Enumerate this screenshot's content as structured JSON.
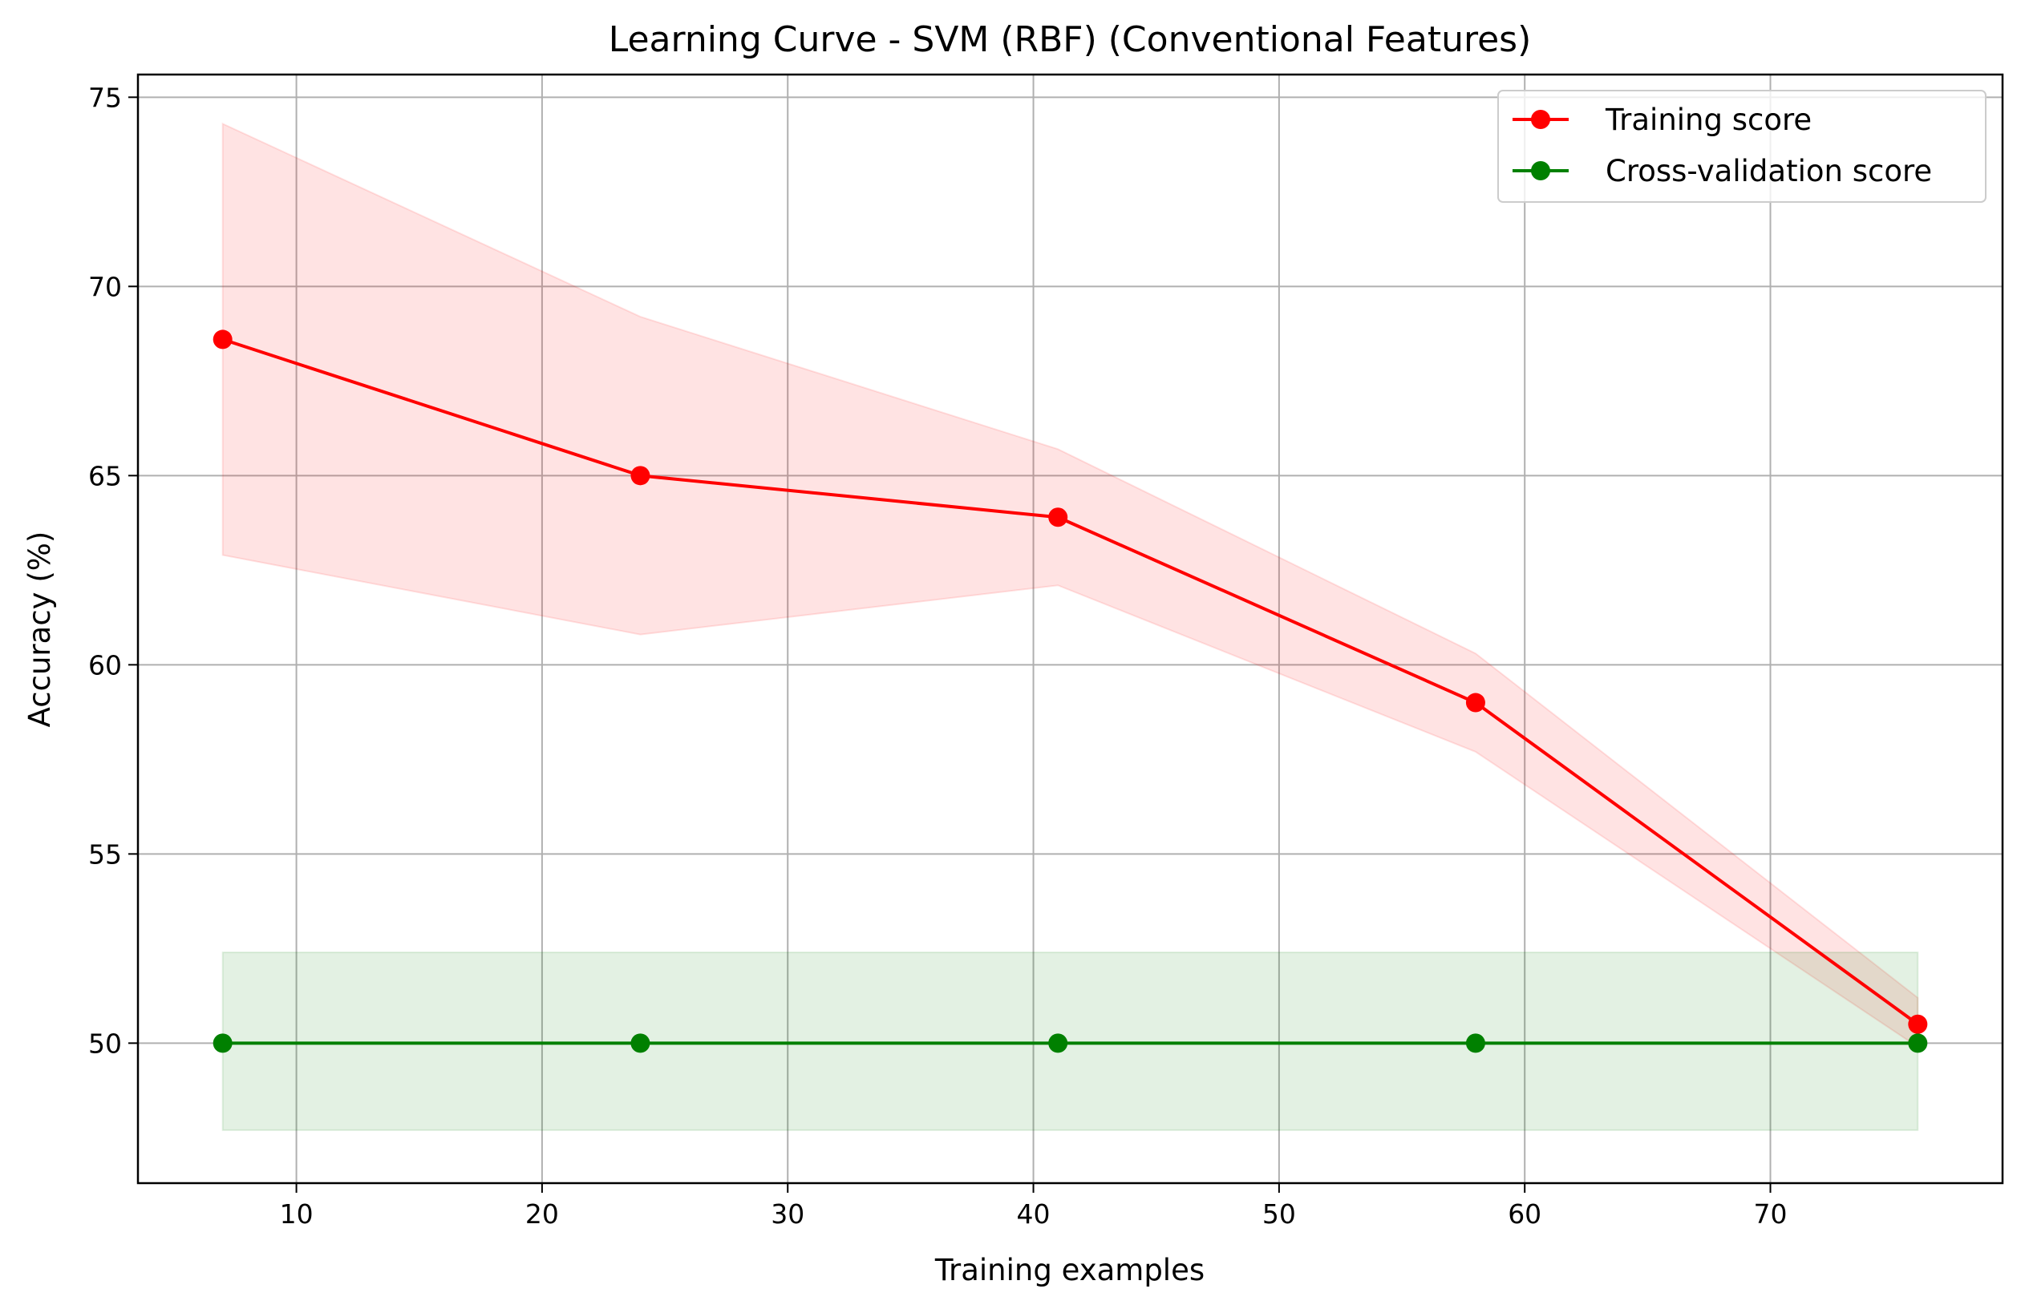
{
  "chart_data": {
    "type": "line",
    "title": "Learning Curve - SVM (RBF) (Conventional Features)",
    "xlabel": "Training examples",
    "ylabel": "Accuracy (%)",
    "xlim": [
      3.55,
      79.45
    ],
    "ylim": [
      46.3,
      75.6
    ],
    "xticks": [
      10,
      20,
      30,
      40,
      50,
      60,
      70
    ],
    "yticks": [
      50,
      55,
      60,
      65,
      70,
      75
    ],
    "grid": true,
    "legend_position": "top-right",
    "x": [
      7,
      24,
      41,
      58,
      76
    ],
    "series": [
      {
        "name": "Training score",
        "color": "#ff0000",
        "band_color": "#ff0000",
        "values": [
          68.6,
          65.0,
          63.9,
          59.0,
          50.5
        ],
        "band_lower": [
          62.9,
          60.8,
          62.1,
          57.7,
          49.9
        ],
        "band_upper": [
          74.3,
          69.2,
          65.7,
          60.3,
          51.2
        ]
      },
      {
        "name": "Cross-validation score",
        "color": "#008000",
        "band_color": "#008000",
        "values": [
          50.0,
          50.0,
          50.0,
          50.0,
          50.0
        ],
        "band_lower": [
          47.7,
          47.7,
          47.7,
          47.7,
          47.7
        ],
        "band_upper": [
          52.4,
          52.4,
          52.4,
          52.4,
          52.4
        ]
      }
    ]
  }
}
